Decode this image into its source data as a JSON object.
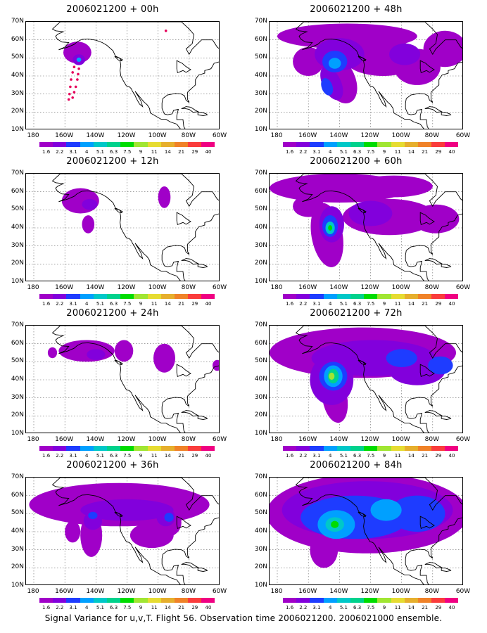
{
  "panels": [
    {
      "title": "2006021200 + 00h"
    },
    {
      "title": "2006021200 + 48h"
    },
    {
      "title": "2006021200 + 12h"
    },
    {
      "title": "2006021200 + 60h"
    },
    {
      "title": "2006021200 + 24h"
    },
    {
      "title": "2006021200 + 72h"
    },
    {
      "title": "2006021200 + 36h"
    },
    {
      "title": "2006021200 + 84h"
    }
  ],
  "lat_labels": [
    "70N",
    "60N",
    "50N",
    "40N",
    "30N",
    "20N",
    "10N"
  ],
  "lon_labels": [
    "180",
    "160W",
    "140W",
    "120W",
    "100W",
    "80W",
    "60W"
  ],
  "colorbar": {
    "labels": [
      "1.6",
      "2.2",
      "3.1",
      "4",
      "5.1",
      "6.3",
      "7.5",
      "9",
      "11",
      "14",
      "21",
      "29",
      "40"
    ],
    "colors": [
      "#a000c8",
      "#8200dc",
      "#1e3cff",
      "#00a0ff",
      "#00c8c8",
      "#00d28c",
      "#00dc00",
      "#a0e632",
      "#e6dc32",
      "#e6af2d",
      "#f08228",
      "#fa3c3c",
      "#f00082"
    ]
  },
  "footer": "Signal Variance for u,v,T. Flight 56. Observation time 2006021200. 2006021000 ensemble."
}
